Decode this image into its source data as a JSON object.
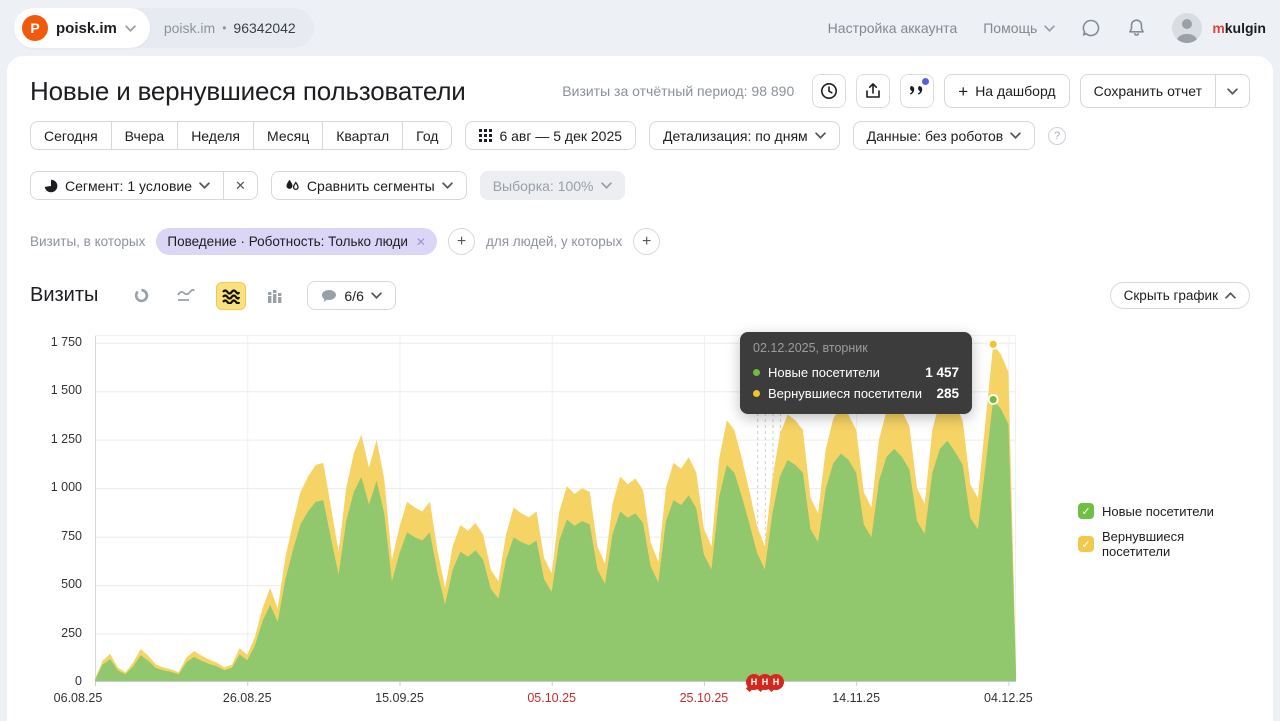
{
  "icons": {
    "plus": "+",
    "close": "✕",
    "question": "?",
    "dot": "•",
    "check": "✓"
  },
  "topbar": {
    "logo_letter": "P",
    "counter_name": "poisk.im",
    "counter_breadcrumb": "poisk.im",
    "counter_id": "96342042",
    "account_settings": "Настройка аккаунта",
    "help": "Помощь",
    "username_first": "m",
    "username_rest": "kulgin"
  },
  "header": {
    "title": "Новые и вернувшиеся пользователи",
    "visits_summary": "Визиты за отчётный период: 98 890",
    "to_dashboard": "На дашборд",
    "save_report": "Сохранить отчет"
  },
  "period_controls": {
    "presets": [
      "Сегодня",
      "Вчера",
      "Неделя",
      "Месяц",
      "Квартал",
      "Год"
    ],
    "date_range": "6 авг — 5 дек 2025",
    "detail": "Детализация: по дням",
    "data_filter": "Данные: без роботов"
  },
  "segment_controls": {
    "segment": "Сегмент: 1 условие",
    "compare": "Сравнить сегменты",
    "sampling": "Выборка: 100%"
  },
  "filters": {
    "visits_label": "Визиты, в которых",
    "chip": "Поведение · Роботность: Только люди",
    "people_label": "для людей, у которых"
  },
  "chart_section": {
    "metric_title": "Визиты",
    "annotations_count": "6/6",
    "hide_chart": "Скрыть график"
  },
  "tooltip": {
    "date": "02.12.2025, вторник",
    "rows": [
      {
        "label": "Новые посетители",
        "value": "1 457",
        "color": "#77b83e"
      },
      {
        "label": "Вернувшиеся посетители",
        "value": "285",
        "color": "#f0c330"
      }
    ]
  },
  "legend": [
    {
      "label": "Новые посетители",
      "color": "#70bf44"
    },
    {
      "label": "Вернувшиеся посетители",
      "color": "#f2c94c"
    }
  ],
  "chart_data": {
    "type": "area",
    "stacked": true,
    "title": "Визиты",
    "date_start": "06.08.2025",
    "date_end": "05.12.2025",
    "x_tick_labels": [
      "06.08.25",
      "26.08.25",
      "15.09.25",
      "05.10.25",
      "25.10.25",
      "14.11.25",
      "04.12.25"
    ],
    "x_tick_days": [
      0,
      20,
      40,
      60,
      80,
      100,
      120
    ],
    "x_tick_red": [
      false,
      false,
      false,
      true,
      true,
      false,
      false
    ],
    "x_tick_label_offsets": [
      -17,
      0,
      0,
      0,
      0,
      0,
      0
    ],
    "y_tick_labels": [
      "0",
      "250",
      "500",
      "750",
      "1 000",
      "1 250",
      "1 500",
      "1 750"
    ],
    "y_tick_values": [
      0,
      250,
      500,
      750,
      1000,
      1250,
      1500,
      1750
    ],
    "ylim": [
      0,
      1790
    ],
    "series": [
      {
        "name": "Новые посетители",
        "color": "#92c86d",
        "values": [
          12,
          90,
          118,
          60,
          40,
          80,
          138,
          110,
          72,
          60,
          52,
          40,
          101,
          130,
          109,
          93,
          81,
          61,
          73,
          142,
          113,
          186,
          312,
          398,
          310,
          528,
          680,
          814,
          880,
          930,
          938,
          740,
          554,
          830,
          980,
          1058,
          915,
          1038,
          870,
          520,
          664,
          772,
          747,
          730,
          772,
          564,
          400,
          580,
          672,
          647,
          680,
          630,
          480,
          430,
          630,
          747,
          722,
          705,
          730,
          530,
          465,
          730,
          838,
          805,
          830,
          813,
          581,
          506,
          764,
          880,
          847,
          871,
          822,
          598,
          515,
          830,
          938,
          913,
          963,
          896,
          656,
          581,
          954,
          1120,
          1079,
          954,
          813,
          664,
          581,
          871,
          1062,
          1145,
          1120,
          1079,
          788,
          722,
          996,
          1129,
          1179,
          1145,
          1079,
          813,
          747,
          1037,
          1162,
          1203,
          1162,
          1096,
          830,
          764,
          1079,
          1203,
          1245,
          1187,
          1120,
          847,
          788,
          1120,
          1457,
          1410,
          1330,
          48
        ]
      },
      {
        "name": "Вернувшиеся посетители",
        "color": "#f6d365",
        "values": [
          3,
          20,
          27,
          15,
          10,
          20,
          32,
          25,
          18,
          15,
          13,
          10,
          24,
          30,
          26,
          22,
          19,
          14,
          17,
          33,
          27,
          44,
          68,
          87,
          70,
          112,
          140,
          166,
          180,
          190,
          192,
          160,
          118,
          170,
          200,
          217,
          190,
          212,
          180,
          110,
          136,
          158,
          153,
          150,
          158,
          116,
          85,
          120,
          138,
          133,
          140,
          130,
          100,
          90,
          130,
          153,
          148,
          145,
          150,
          110,
          95,
          150,
          172,
          165,
          170,
          167,
          119,
          104,
          156,
          180,
          173,
          179,
          168,
          122,
          105,
          170,
          192,
          187,
          197,
          184,
          134,
          119,
          196,
          230,
          221,
          196,
          167,
          136,
          119,
          179,
          218,
          235,
          230,
          221,
          162,
          148,
          204,
          231,
          241,
          235,
          221,
          167,
          153,
          213,
          238,
          247,
          238,
          224,
          170,
          156,
          221,
          247,
          255,
          243,
          230,
          173,
          162,
          230,
          285,
          280,
          270,
          12
        ]
      }
    ],
    "hover": {
      "index": 118,
      "date": "02.12.2025, вторник",
      "new": 1457,
      "returning": 285,
      "dot_colors": {
        "new": "#77b83e",
        "total": "#f0c330"
      }
    },
    "annotation_days": [
      87,
      88,
      89,
      90
    ],
    "annotation_badges": [
      "Н",
      "Н",
      "Н"
    ]
  },
  "colors": {
    "area_new": "#92c86d",
    "area_returning": "#f6d365",
    "legend_new": "#70bf44",
    "legend_returning": "#f2c94c",
    "red_date": "#cc2b2b",
    "badge_red": "#d3281e",
    "tooltip_bg": "#3c3c3c",
    "topbar_bg": "#edf0f5",
    "logo_orange": "#f05a0a",
    "notification_blue": "#5b5fd9",
    "selected_icon_bg": "#fae17d",
    "chip_violet": "#dbd6f6"
  }
}
